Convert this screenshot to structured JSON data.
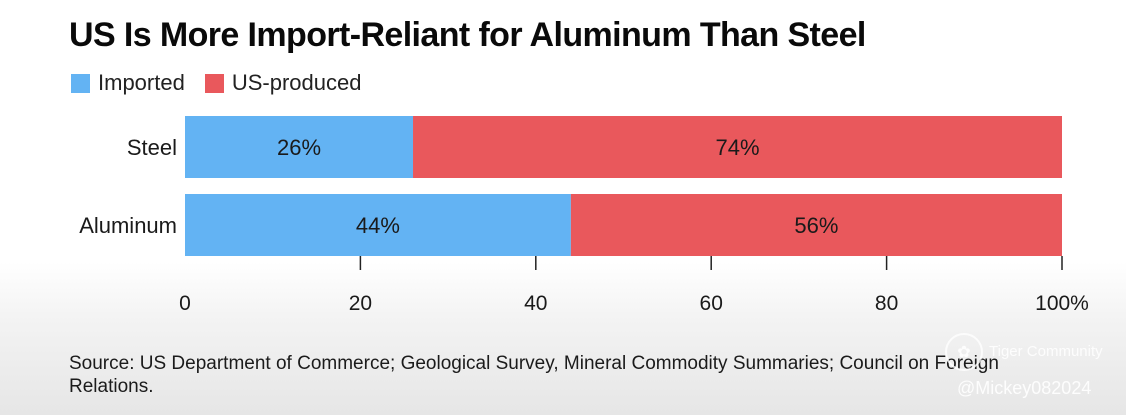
{
  "title": "US Is More Import-Reliant for Aluminum Than Steel",
  "legend": [
    {
      "label": "Imported",
      "color": "#63b3f3"
    },
    {
      "label": "US-produced",
      "color": "#e9585c"
    }
  ],
  "chart_data": {
    "type": "bar",
    "orientation": "horizontal",
    "stacked": true,
    "categories": [
      "Steel",
      "Aluminum"
    ],
    "series": [
      {
        "name": "Imported",
        "values": [
          26,
          44
        ],
        "labels": [
          "26%",
          "44%"
        ],
        "color": "#63b3f3"
      },
      {
        "name": "US-produced",
        "values": [
          74,
          56
        ],
        "labels": [
          "74%",
          "56%"
        ],
        "color": "#e9585c"
      }
    ],
    "xlim": [
      0,
      100
    ],
    "xticks": [
      0,
      20,
      40,
      60,
      80,
      100
    ],
    "xtick_labels": [
      "0",
      "20",
      "40",
      "60",
      "80",
      "100%"
    ],
    "title": "US Is More Import-Reliant for Aluminum Than Steel",
    "xlabel": "",
    "ylabel": "",
    "legend_position": "top-left",
    "grid": false
  },
  "source": "Source: US Department of Commerce; Geological Survey, Mineral Commodity Summaries; Council on Foreign Relations.",
  "watermark": {
    "brand": "Tiger Community",
    "user": "@Mickey082024",
    "icon": "tiger-community-logo-icon"
  }
}
